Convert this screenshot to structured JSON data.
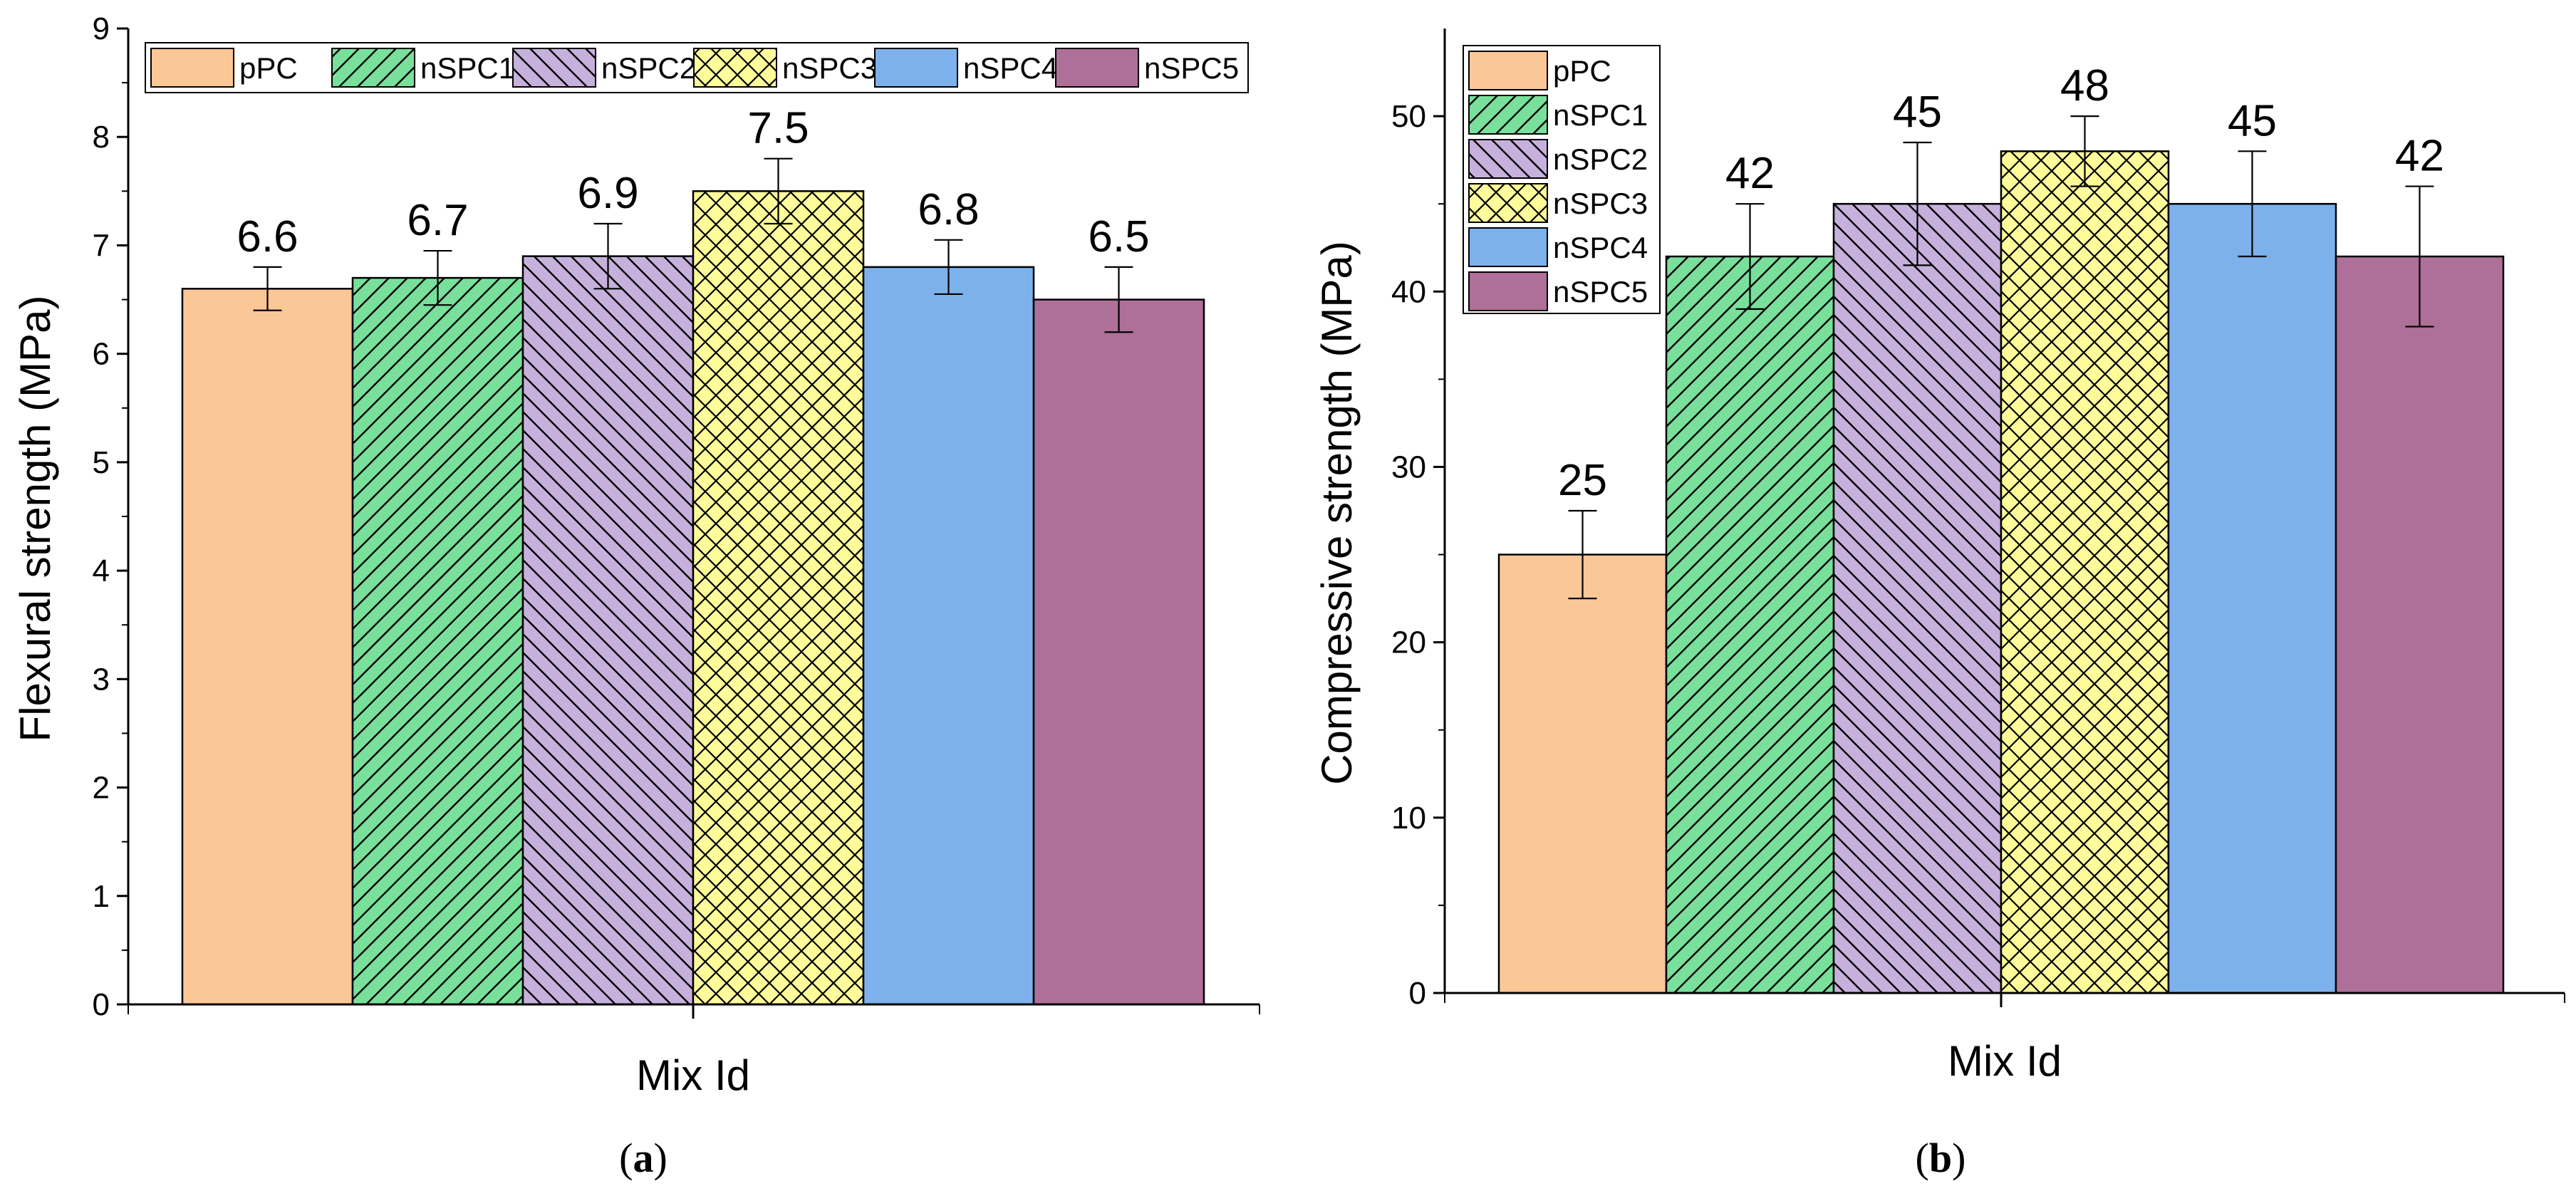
{
  "chart_data": [
    {
      "type": "bar",
      "panel": "a",
      "caption": {
        "open": "(",
        "letter": "a",
        "close": ")"
      },
      "categories": [
        "pPC",
        "nSPC1",
        "nSPC2",
        "nSPC3",
        "nSPC4",
        "nSPC5"
      ],
      "values": [
        6.6,
        6.7,
        6.9,
        7.5,
        6.8,
        6.5
      ],
      "value_labels": [
        "6.6",
        "6.7",
        "6.9",
        "7.5",
        "6.8",
        "6.5"
      ],
      "errors": [
        0.2,
        0.25,
        0.3,
        0.3,
        0.25,
        0.3
      ],
      "xlabel": "Mix Id",
      "ylabel": "Flexural strength (MPa)",
      "ylim": [
        0,
        9
      ],
      "yticks": [
        0,
        1,
        2,
        3,
        4,
        5,
        6,
        7,
        8,
        9
      ],
      "legend": {
        "placement": "top",
        "layout": "row",
        "entries": [
          "pPC",
          "nSPC1",
          "nSPC2",
          "nSPC3",
          "nSPC4",
          "nSPC5"
        ]
      }
    },
    {
      "type": "bar",
      "panel": "b",
      "caption": {
        "open": "(",
        "letter": "b",
        "close": ")"
      },
      "categories": [
        "pPC",
        "nSPC1",
        "nSPC2",
        "nSPC3",
        "nSPC4",
        "nSPC5"
      ],
      "values": [
        25,
        42,
        45,
        48,
        45,
        42
      ],
      "value_labels": [
        "25",
        "42",
        "45",
        "48",
        "45",
        "42"
      ],
      "errors": [
        2.5,
        3,
        3.5,
        2,
        3,
        4
      ],
      "xlabel": "Mix Id",
      "ylabel": "Compressive strength (MPa)",
      "ylim": [
        0,
        55
      ],
      "yticks": [
        0,
        10,
        20,
        30,
        40,
        50
      ],
      "legend": {
        "placement": "top-left",
        "layout": "column",
        "entries": [
          "pPC",
          "nSPC1",
          "nSPC2",
          "nSPC3",
          "nSPC4",
          "nSPC5"
        ]
      }
    }
  ],
  "series_style": [
    {
      "name": "pPC",
      "color": "#fcc796",
      "pattern": "none"
    },
    {
      "name": "nSPC1",
      "color": "#79e09b",
      "pattern": "diag-right"
    },
    {
      "name": "nSPC2",
      "color": "#c6b1dd",
      "pattern": "diag-left"
    },
    {
      "name": "nSPC3",
      "color": "#fdfb9a",
      "pattern": "crosshatch"
    },
    {
      "name": "nSPC4",
      "color": "#7cb1ec",
      "pattern": "none"
    },
    {
      "name": "nSPC5",
      "color": "#ae7098",
      "pattern": "none"
    }
  ]
}
